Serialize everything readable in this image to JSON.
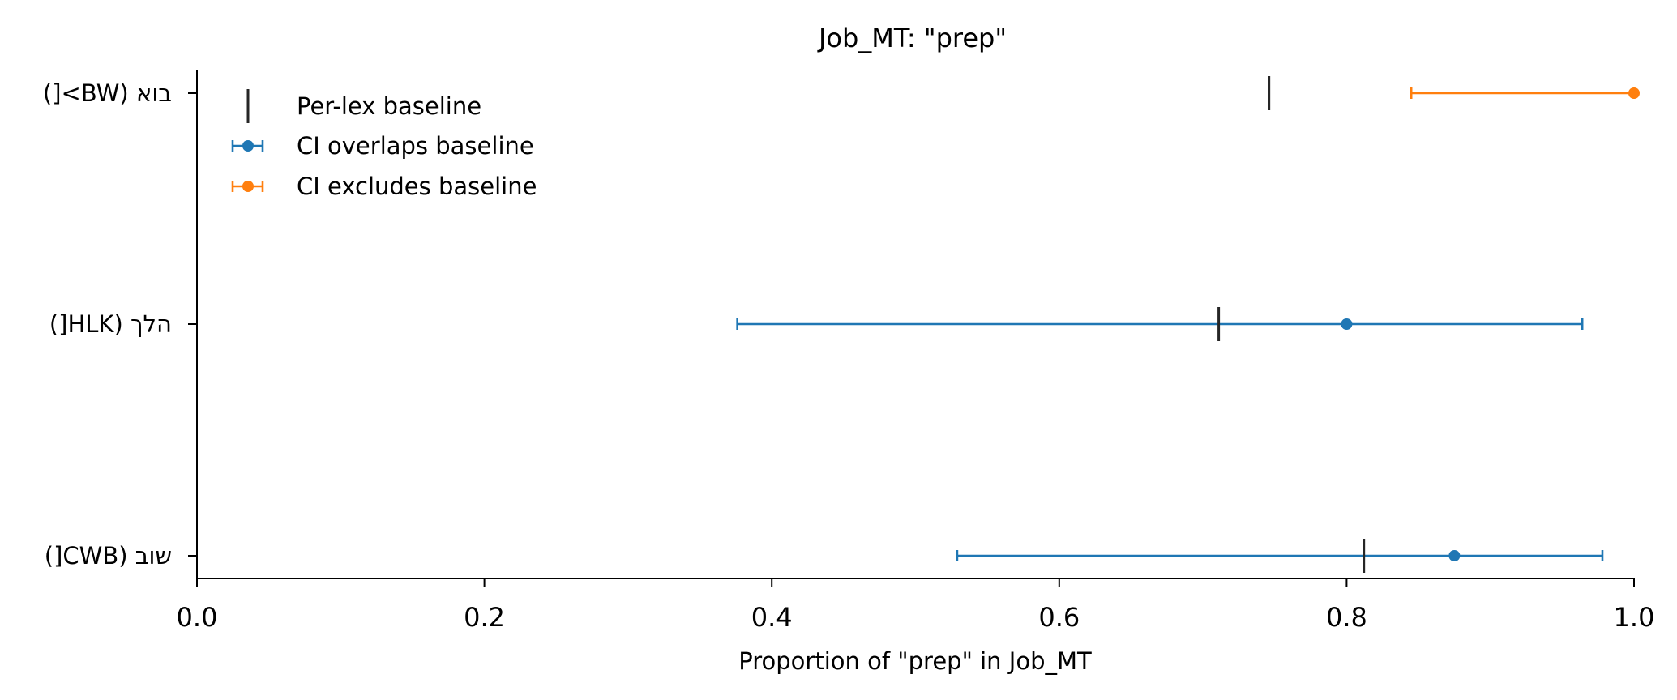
{
  "chart_data": {
    "type": "errorbar",
    "title": "Job_MT: \"prep\"",
    "xlabel": "Proportion of \"prep\" in Job_MT",
    "ylabel": "",
    "xlim": [
      0.0,
      1.0
    ],
    "xticks": [
      "0.0",
      "0.2",
      "0.4",
      "0.6",
      "0.8",
      "1.0"
    ],
    "grid": false,
    "legend_position": "top-left",
    "legend": [
      {
        "label": "Per-lex baseline",
        "marker": "vline",
        "color": "#262626"
      },
      {
        "label": "CI overlaps baseline",
        "marker": "errorbar",
        "color": "#1f77b4"
      },
      {
        "label": "CI excludes baseline",
        "marker": "errorbar",
        "color": "#ff7f0e"
      }
    ],
    "categories": [
      "בוא (BW>[)",
      "הלך (HLK[)",
      "שוב (CWB[)"
    ],
    "points": [
      {
        "label": "בוא (BW>[)",
        "estimate": 1.0,
        "ci_low": 0.845,
        "ci_high": 1.0,
        "baseline": 0.746,
        "group": "CI excludes baseline"
      },
      {
        "label": "הלך (HLK[)",
        "estimate": 0.8,
        "ci_low": 0.376,
        "ci_high": 0.964,
        "baseline": 0.711,
        "group": "CI overlaps baseline"
      },
      {
        "label": "שוב (CWB[)",
        "estimate": 0.875,
        "ci_low": 0.529,
        "ci_high": 0.978,
        "baseline": 0.812,
        "group": "CI overlaps baseline"
      }
    ]
  }
}
